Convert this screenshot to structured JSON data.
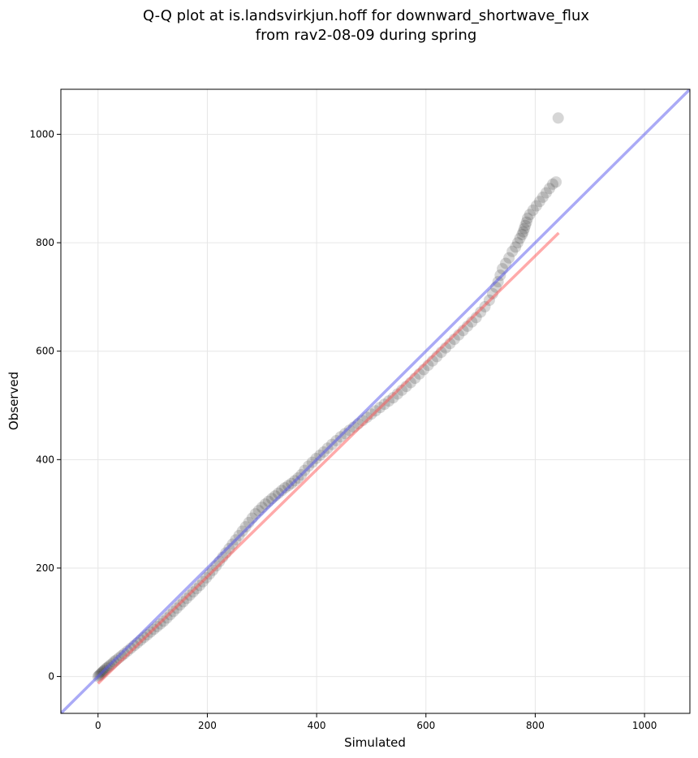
{
  "chart_data": {
    "type": "scatter",
    "title": [
      "Q-Q plot at is.landsvirkjun.hoff for downward_shortwave_flux",
      "from rav2-08-09 during spring"
    ],
    "xlabel": "Simulated",
    "ylabel": "Observed",
    "xlim": [
      -68,
      1083
    ],
    "ylim": [
      -68,
      1083
    ],
    "xticks": [
      0,
      200,
      400,
      600,
      800,
      1000
    ],
    "yticks": [
      0,
      200,
      400,
      600,
      800,
      1000
    ],
    "grid": true,
    "series": [
      {
        "kind": "points",
        "color": "#333333",
        "x": [
          0,
          2,
          4,
          6,
          8,
          10,
          12,
          15,
          18,
          21,
          25,
          29,
          33,
          38,
          43,
          48,
          54,
          60,
          66,
          72,
          78,
          84,
          90,
          96,
          102,
          108,
          114,
          120,
          126,
          132,
          138,
          144,
          150,
          156,
          162,
          168,
          174,
          180,
          186,
          192,
          198,
          204,
          210,
          216,
          222,
          228,
          234,
          240,
          246,
          252,
          258,
          264,
          270,
          276,
          282,
          288,
          294,
          300,
          306,
          312,
          318,
          324,
          330,
          336,
          342,
          348,
          354,
          360,
          366,
          372,
          378,
          385,
          392,
          399,
          406,
          413,
          420,
          428,
          436,
          444,
          452,
          460,
          468,
          476,
          484,
          492,
          500,
          508,
          516,
          524,
          532,
          540,
          548,
          556,
          564,
          572,
          580,
          588,
          596,
          604,
          612,
          620,
          628,
          636,
          644,
          652,
          660,
          668,
          676,
          684,
          692,
          700,
          708,
          716,
          722,
          728,
          732,
          736,
          740,
          746,
          752,
          758,
          764,
          768,
          772,
          776,
          778,
          780,
          782,
          784,
          786,
          790,
          796,
          802,
          808,
          814,
          820,
          826,
          832,
          838,
          842
        ],
        "y": [
          0,
          2,
          4,
          6,
          8,
          10,
          12,
          15,
          17,
          20,
          23,
          27,
          30,
          34,
          38,
          42,
          47,
          52,
          57,
          62,
          67,
          72,
          77,
          82,
          87,
          92,
          97,
          102,
          108,
          114,
          120,
          126,
          132,
          138,
          144,
          150,
          156,
          162,
          168,
          175,
          182,
          189,
          196,
          204,
          212,
          220,
          228,
          236,
          244,
          252,
          260,
          268,
          276,
          284,
          292,
          300,
          306,
          312,
          318,
          323,
          328,
          333,
          338,
          343,
          348,
          352,
          356,
          361,
          366,
          372,
          380,
          388,
          395,
          402,
          408,
          414,
          421,
          428,
          435,
          442,
          448,
          454,
          460,
          466,
          472,
          478,
          484,
          490,
          496,
          502,
          508,
          514,
          521,
          528,
          535,
          542,
          550,
          558,
          566,
          574,
          582,
          590,
          598,
          606,
          614,
          622,
          630,
          638,
          646,
          654,
          662,
          672,
          682,
          694,
          706,
          718,
          728,
          740,
          752,
          762,
          772,
          784,
          792,
          800,
          808,
          815,
          820,
          826,
          832,
          838,
          845,
          852,
          860,
          868,
          876,
          884,
          892,
          900,
          908,
          912,
          1030
        ]
      },
      {
        "kind": "line",
        "color": "#ff5555",
        "x": [
          0,
          843
        ],
        "y": [
          -13,
          818
        ]
      },
      {
        "kind": "line",
        "color": "#5555ee",
        "x": [
          -68,
          1083
        ],
        "y": [
          -68,
          1083
        ]
      }
    ]
  }
}
